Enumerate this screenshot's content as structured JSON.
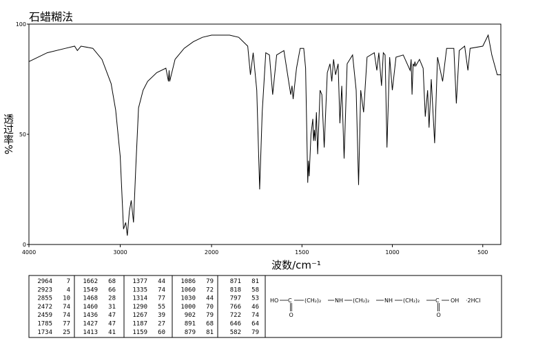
{
  "chart_data": {
    "type": "line",
    "title": "石蜡糊法",
    "x_label": "波数/cm⁻¹",
    "y_label": "透过率%",
    "xlim": [
      4000,
      400
    ],
    "x_scale_break": 2000,
    "xticks": [
      4000,
      3000,
      2000,
      1500,
      1000,
      500
    ],
    "ylim": [
      0,
      100
    ],
    "yticks": [
      0,
      50,
      100
    ],
    "color": "#000000",
    "x": [
      4000,
      3800,
      3600,
      3500,
      3470,
      3430,
      3300,
      3200,
      3100,
      3050,
      3000,
      2964,
      2940,
      2923,
      2900,
      2880,
      2855,
      2830,
      2800,
      2750,
      2700,
      2600,
      2500,
      2472,
      2465,
      2459,
      2400,
      2300,
      2200,
      2100,
      2000,
      1900,
      1850,
      1800,
      1785,
      1770,
      1750,
      1734,
      1720,
      1700,
      1680,
      1662,
      1640,
      1600,
      1562,
      1555,
      1549,
      1530,
      1510,
      1490,
      1480,
      1468,
      1464,
      1460,
      1450,
      1440,
      1436,
      1431,
      1427,
      1420,
      1413,
      1400,
      1390,
      1377,
      1360,
      1345,
      1335,
      1325,
      1314,
      1300,
      1290,
      1280,
      1267,
      1250,
      1220,
      1200,
      1187,
      1175,
      1159,
      1140,
      1100,
      1086,
      1075,
      1060,
      1050,
      1040,
      1030,
      1015,
      1000,
      980,
      940,
      902,
      896,
      891,
      885,
      879,
      875,
      871,
      850,
      830,
      818,
      805,
      797,
      785,
      766,
      750,
      722,
      700,
      660,
      646,
      630,
      600,
      582,
      570,
      500,
      470,
      450,
      420,
      400
    ],
    "values": [
      83,
      87,
      89,
      90,
      88,
      90,
      89,
      84,
      73,
      61,
      40,
      7,
      10,
      4,
      15,
      20,
      10,
      35,
      62,
      70,
      74,
      78,
      80,
      74,
      79,
      74,
      84,
      89,
      92,
      94,
      95,
      95,
      94,
      90,
      77,
      87,
      70,
      25,
      60,
      87,
      86,
      68,
      86,
      88,
      68,
      72,
      66,
      80,
      89,
      89,
      80,
      28,
      38,
      31,
      50,
      57,
      47,
      52,
      47,
      60,
      41,
      70,
      68,
      44,
      78,
      82,
      74,
      84,
      77,
      82,
      55,
      72,
      39,
      82,
      86,
      70,
      27,
      70,
      60,
      85,
      87,
      79,
      87,
      72,
      87,
      86,
      44,
      85,
      70,
      85,
      86,
      79,
      84,
      68,
      82,
      81,
      83,
      81,
      84,
      80,
      58,
      70,
      53,
      75,
      46,
      85,
      74,
      89,
      89,
      64,
      88,
      90,
      79,
      89,
      90,
      95,
      86,
      77,
      77
    ]
  },
  "peak_table": {
    "columns": [
      [
        [
          2964,
          7
        ],
        [
          2923,
          4
        ],
        [
          2855,
          10
        ],
        [
          2472,
          74
        ],
        [
          2459,
          74
        ],
        [
          1785,
          77
        ],
        [
          1734,
          25
        ]
      ],
      [
        [
          1662,
          68
        ],
        [
          1549,
          66
        ],
        [
          1468,
          28
        ],
        [
          1460,
          31
        ],
        [
          1436,
          47
        ],
        [
          1427,
          47
        ],
        [
          1413,
          41
        ]
      ],
      [
        [
          1377,
          44
        ],
        [
          1335,
          74
        ],
        [
          1314,
          77
        ],
        [
          1290,
          55
        ],
        [
          1267,
          39
        ],
        [
          1187,
          27
        ],
        [
          1159,
          60
        ]
      ],
      [
        [
          1086,
          79
        ],
        [
          1060,
          72
        ],
        [
          1030,
          44
        ],
        [
          1000,
          70
        ],
        [
          902,
          79
        ],
        [
          891,
          68
        ],
        [
          879,
          81
        ]
      ],
      [
        [
          871,
          81
        ],
        [
          818,
          58
        ],
        [
          797,
          53
        ],
        [
          766,
          46
        ],
        [
          722,
          74
        ],
        [
          646,
          64
        ],
        [
          582,
          79
        ]
      ]
    ]
  },
  "structure": {
    "parts": [
      "HO",
      "C",
      "(CH₂)₂",
      "NH",
      "(CH₂)₂",
      "NH",
      "(CH₂)₂",
      "C",
      "OH",
      "·2HCl"
    ],
    "carbonyl_o": "O"
  }
}
